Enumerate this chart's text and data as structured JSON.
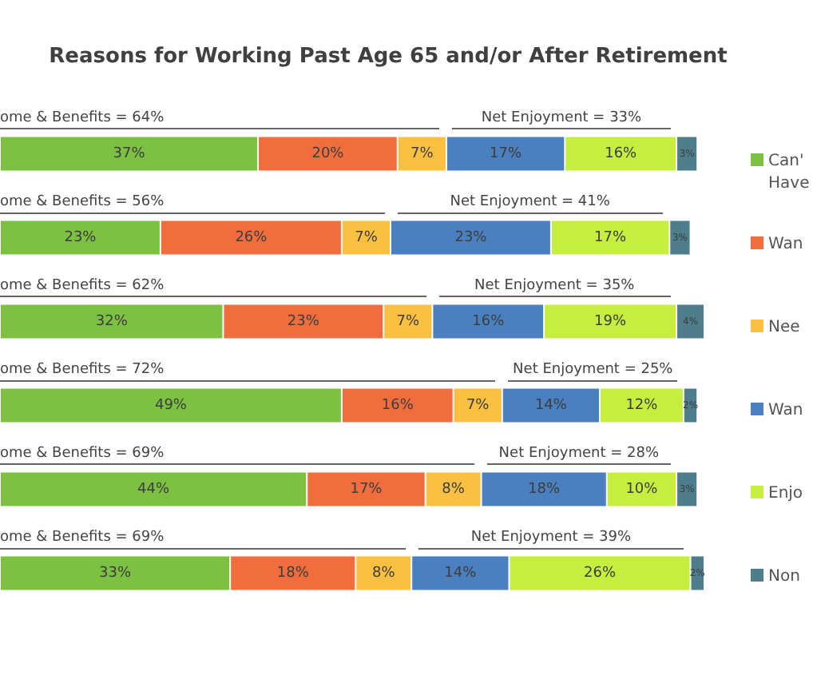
{
  "chart_data": {
    "type": "bar",
    "orientation": "horizontal",
    "stacked": true,
    "title": "Reasons for Working Past Age 65 and/or After Retirement",
    "categories": [
      null,
      null,
      null,
      null,
      null,
      null
    ],
    "xlim": [
      0,
      101
    ],
    "tick_labels": false,
    "grid": false,
    "legend": "right",
    "series": [
      {
        "name": "Can'\nHave",
        "color": "#7cc142",
        "values": [
          37,
          23,
          32,
          49,
          44,
          33
        ],
        "value_labels": [
          "37%",
          "23%",
          "32%",
          "49%",
          "44%",
          "33%"
        ]
      },
      {
        "name": "Wan",
        "color": "#f26d3d",
        "values": [
          20,
          26,
          23,
          16,
          17,
          18
        ],
        "value_labels": [
          "20%",
          "26%",
          "23%",
          "16%",
          "17%",
          "18%"
        ]
      },
      {
        "name": "Nee",
        "color": "#fcc041",
        "values": [
          7,
          7,
          7,
          7,
          8,
          8
        ],
        "value_labels": [
          "7%",
          "7%",
          "7%",
          "7%",
          "8%",
          "8%"
        ]
      },
      {
        "name": "Wan",
        "color": "#4a7fc0",
        "values": [
          17,
          23,
          16,
          14,
          18,
          14
        ],
        "value_labels": [
          "17%",
          "23%",
          "16%",
          "14%",
          "18%",
          "14%"
        ]
      },
      {
        "name": "Enjo",
        "color": "#c6ee3e",
        "values": [
          16,
          17,
          19,
          12,
          10,
          26
        ],
        "value_labels": [
          "16%",
          "17%",
          "19%",
          "12%",
          "10%",
          "26%"
        ]
      },
      {
        "name": "Non",
        "color": "#4e7d8c",
        "values": [
          3,
          3,
          4,
          2,
          3,
          2
        ],
        "value_labels": [
          "3%",
          "3%",
          "4%",
          "2%",
          "3%",
          "2%"
        ]
      }
    ],
    "annotations": [
      "ome & Benefits = 64%",
      "Net Enjoyment = 33%",
      "ome & Benefits = 56%",
      "Net Enjoyment = 41%",
      "ome & Benefits = 62%",
      "Net Enjoyment = 35%",
      "ome & Benefits = 72%",
      "Net Enjoyment = 25%",
      "ome & Benefits = 69%",
      "Net Enjoyment = 28%",
      "ome & Benefits = 69%",
      "Net Enjoyment = 39%"
    ]
  }
}
